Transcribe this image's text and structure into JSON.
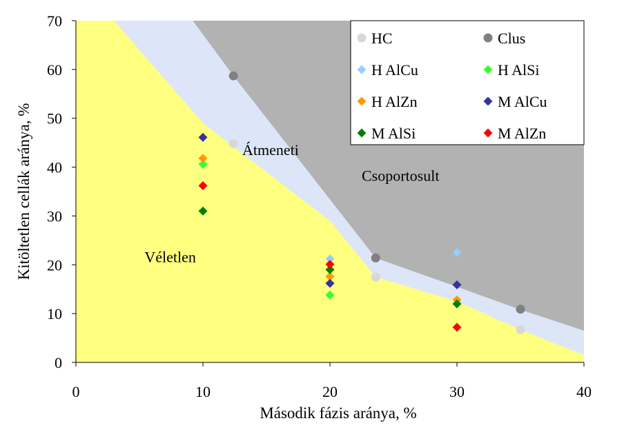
{
  "chart_data": {
    "type": "scatter",
    "xlabel": "Második fázis aránya, %",
    "ylabel": "Kitöltetlen cellák aránya, %",
    "xlim": [
      0,
      40
    ],
    "ylim": [
      0,
      70
    ],
    "xticks": [
      0,
      10,
      20,
      30,
      40
    ],
    "yticks": [
      0,
      10,
      20,
      30,
      40,
      50,
      60,
      70
    ],
    "grid": false,
    "legend_position": "top-right",
    "regions": [
      {
        "name": "Véletlen",
        "color": "#ffff80",
        "boundary": [
          [
            0,
            70
          ],
          [
            3,
            70
          ],
          [
            10,
            49
          ],
          [
            20,
            29
          ],
          [
            23.6,
            17.5
          ],
          [
            30,
            12.5
          ],
          [
            35,
            6.7
          ],
          [
            40,
            1.5
          ]
        ]
      },
      {
        "name": "Átmeneti",
        "color": "#dce6f8",
        "boundary": [
          [
            0,
            70
          ],
          [
            9.2,
            70
          ],
          [
            12.4,
            58.7
          ],
          [
            23.6,
            21.4
          ],
          [
            30,
            15.5
          ],
          [
            35,
            10.8
          ],
          [
            40,
            6.5
          ]
        ]
      },
      {
        "name": "Csoportosult",
        "color": "#b2b2b2",
        "boundary": []
      }
    ],
    "series": [
      {
        "name": "HC",
        "marker": "circle",
        "color": "#d8d8d8",
        "points": [
          [
            12.4,
            44.8
          ],
          [
            23.6,
            17.5
          ],
          [
            35,
            6.7
          ]
        ]
      },
      {
        "name": "Clus",
        "marker": "circle",
        "color": "#808080",
        "points": [
          [
            12.4,
            58.7
          ],
          [
            23.6,
            21.4
          ],
          [
            35,
            10.9
          ]
        ]
      },
      {
        "name": "H AlCu",
        "marker": "diamond",
        "color": "#99ccff",
        "points": [
          [
            20,
            21.2
          ],
          [
            30,
            22.5
          ]
        ]
      },
      {
        "name": "H AlSi",
        "marker": "diamond",
        "color": "#33ff33",
        "points": [
          [
            10,
            40.6
          ],
          [
            20,
            13.8
          ]
        ]
      },
      {
        "name": "H AlZn",
        "marker": "diamond",
        "color": "#ff9900",
        "points": [
          [
            10,
            41.8
          ],
          [
            20,
            17.6
          ],
          [
            30,
            12.8
          ]
        ]
      },
      {
        "name": "M AlCu",
        "marker": "diamond",
        "color": "#333399",
        "points": [
          [
            10,
            46.1
          ],
          [
            20,
            16.2
          ],
          [
            30,
            15.9
          ]
        ]
      },
      {
        "name": "M AlSi",
        "marker": "diamond",
        "color": "#008000",
        "points": [
          [
            10,
            31.0
          ],
          [
            20,
            19.0
          ],
          [
            30,
            12.0
          ]
        ]
      },
      {
        "name": "M AlZn",
        "marker": "diamond",
        "color": "#ff0000",
        "points": [
          [
            10,
            36.2
          ],
          [
            20,
            20.1
          ],
          [
            30,
            7.2
          ]
        ]
      }
    ],
    "annotations": [
      {
        "text": "Átmeneti",
        "x": 13.1,
        "y": 42.5
      },
      {
        "text": "Csoportosult",
        "x": 22.5,
        "y": 37.2
      },
      {
        "text": "Véletlen",
        "x": 5.4,
        "y": 20.5
      }
    ]
  }
}
